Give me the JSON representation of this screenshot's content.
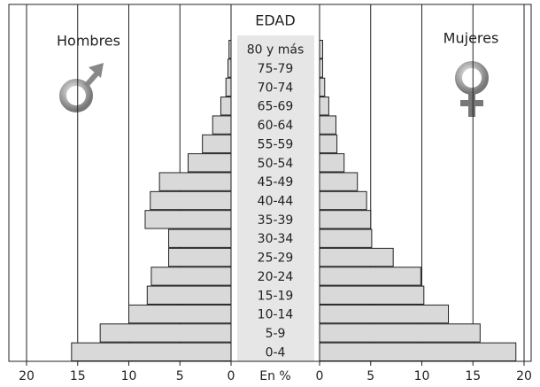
{
  "chart_data": {
    "type": "pyramid",
    "title": "EDAD",
    "xlabel": "En %",
    "categories": [
      "0-4",
      "5-9",
      "10-14",
      "15-19",
      "20-24",
      "25-29",
      "30-34",
      "35-39",
      "40-44",
      "45-49",
      "50-54",
      "55-59",
      "60-64",
      "65-69",
      "70-74",
      "75-79",
      "80 y más"
    ],
    "series": [
      {
        "name": "Hombres",
        "color": "#d9d9d9",
        "values": [
          15.6,
          12.8,
          10,
          8.2,
          7.8,
          6.1,
          6.1,
          8.4,
          7.9,
          7.0,
          4.2,
          2.8,
          1.8,
          1.0,
          0.5,
          0.3,
          0.2
        ]
      },
      {
        "name": "Mujeres",
        "color": "#d9d9d9",
        "values": [
          19.2,
          15.7,
          12.6,
          10.2,
          9.9,
          7.2,
          5.1,
          5.0,
          4.6,
          3.7,
          2.4,
          1.7,
          1.6,
          0.9,
          0.5,
          0.3,
          0.3
        ]
      }
    ],
    "xlim": [
      0,
      20
    ],
    "xticks": [
      0,
      5,
      10,
      15,
      20
    ],
    "grid": true
  }
}
